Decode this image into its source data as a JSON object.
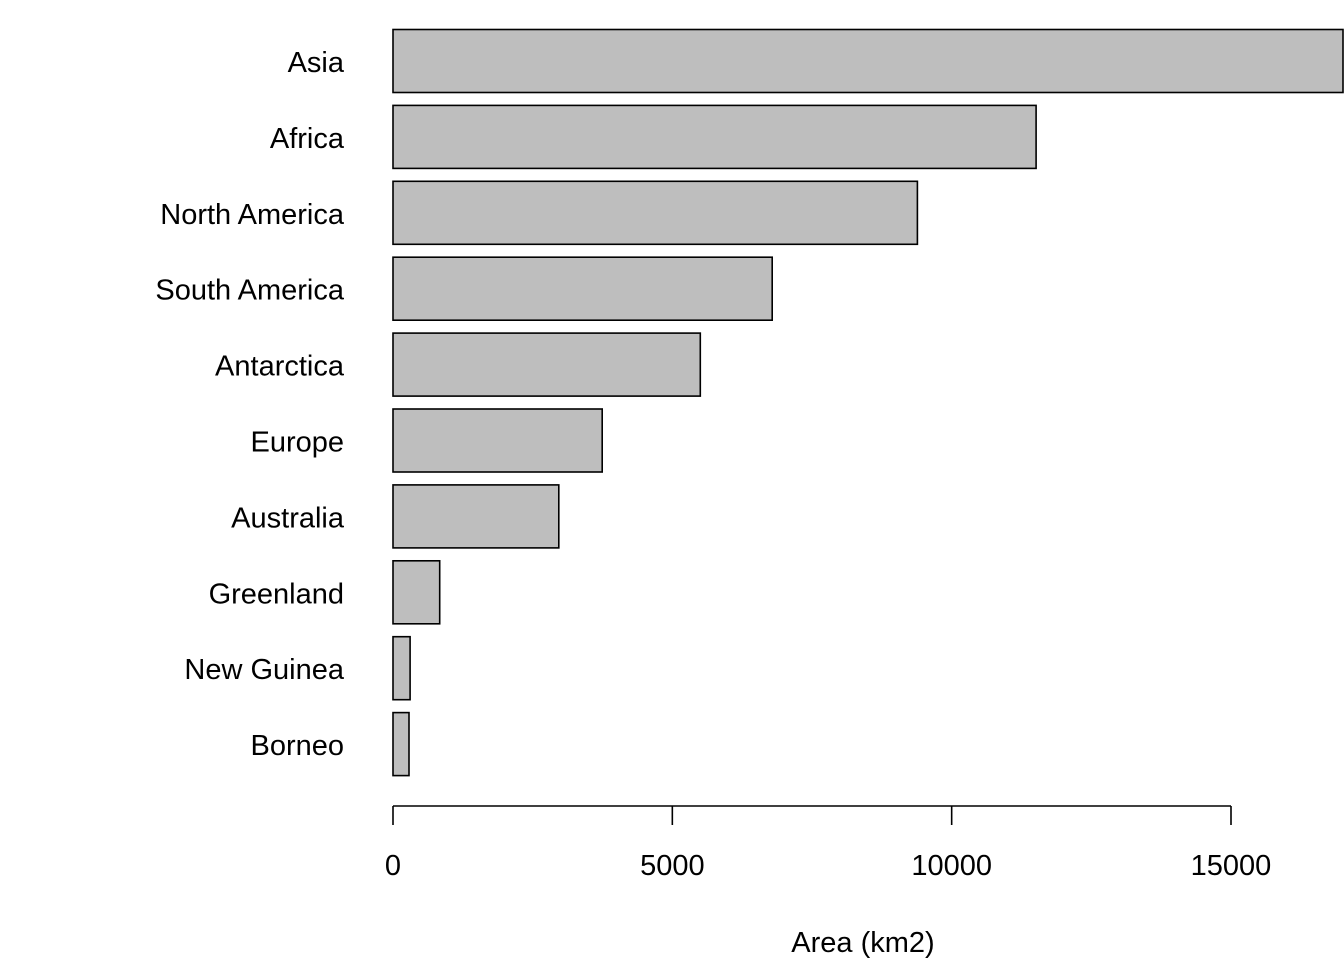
{
  "chart_data": {
    "type": "bar",
    "orientation": "horizontal",
    "categories": [
      "Asia",
      "Africa",
      "North America",
      "South America",
      "Antarctica",
      "Europe",
      "Australia",
      "Greenland",
      "New Guinea",
      "Borneo"
    ],
    "values": [
      17212,
      11512,
      9386,
      6788,
      5500,
      3745,
      2968,
      836,
      306,
      287
    ],
    "xlabel": "Area (km2)",
    "ylabel": "",
    "xlim": [
      0,
      17000
    ],
    "xticks": [
      0,
      5000,
      10000,
      15000
    ],
    "xtick_labels": [
      "0",
      "5000",
      "10000",
      "15000"
    ],
    "grid": false,
    "colors": {
      "bar_fill": "#bebebe",
      "bar_stroke": "#000000"
    }
  }
}
